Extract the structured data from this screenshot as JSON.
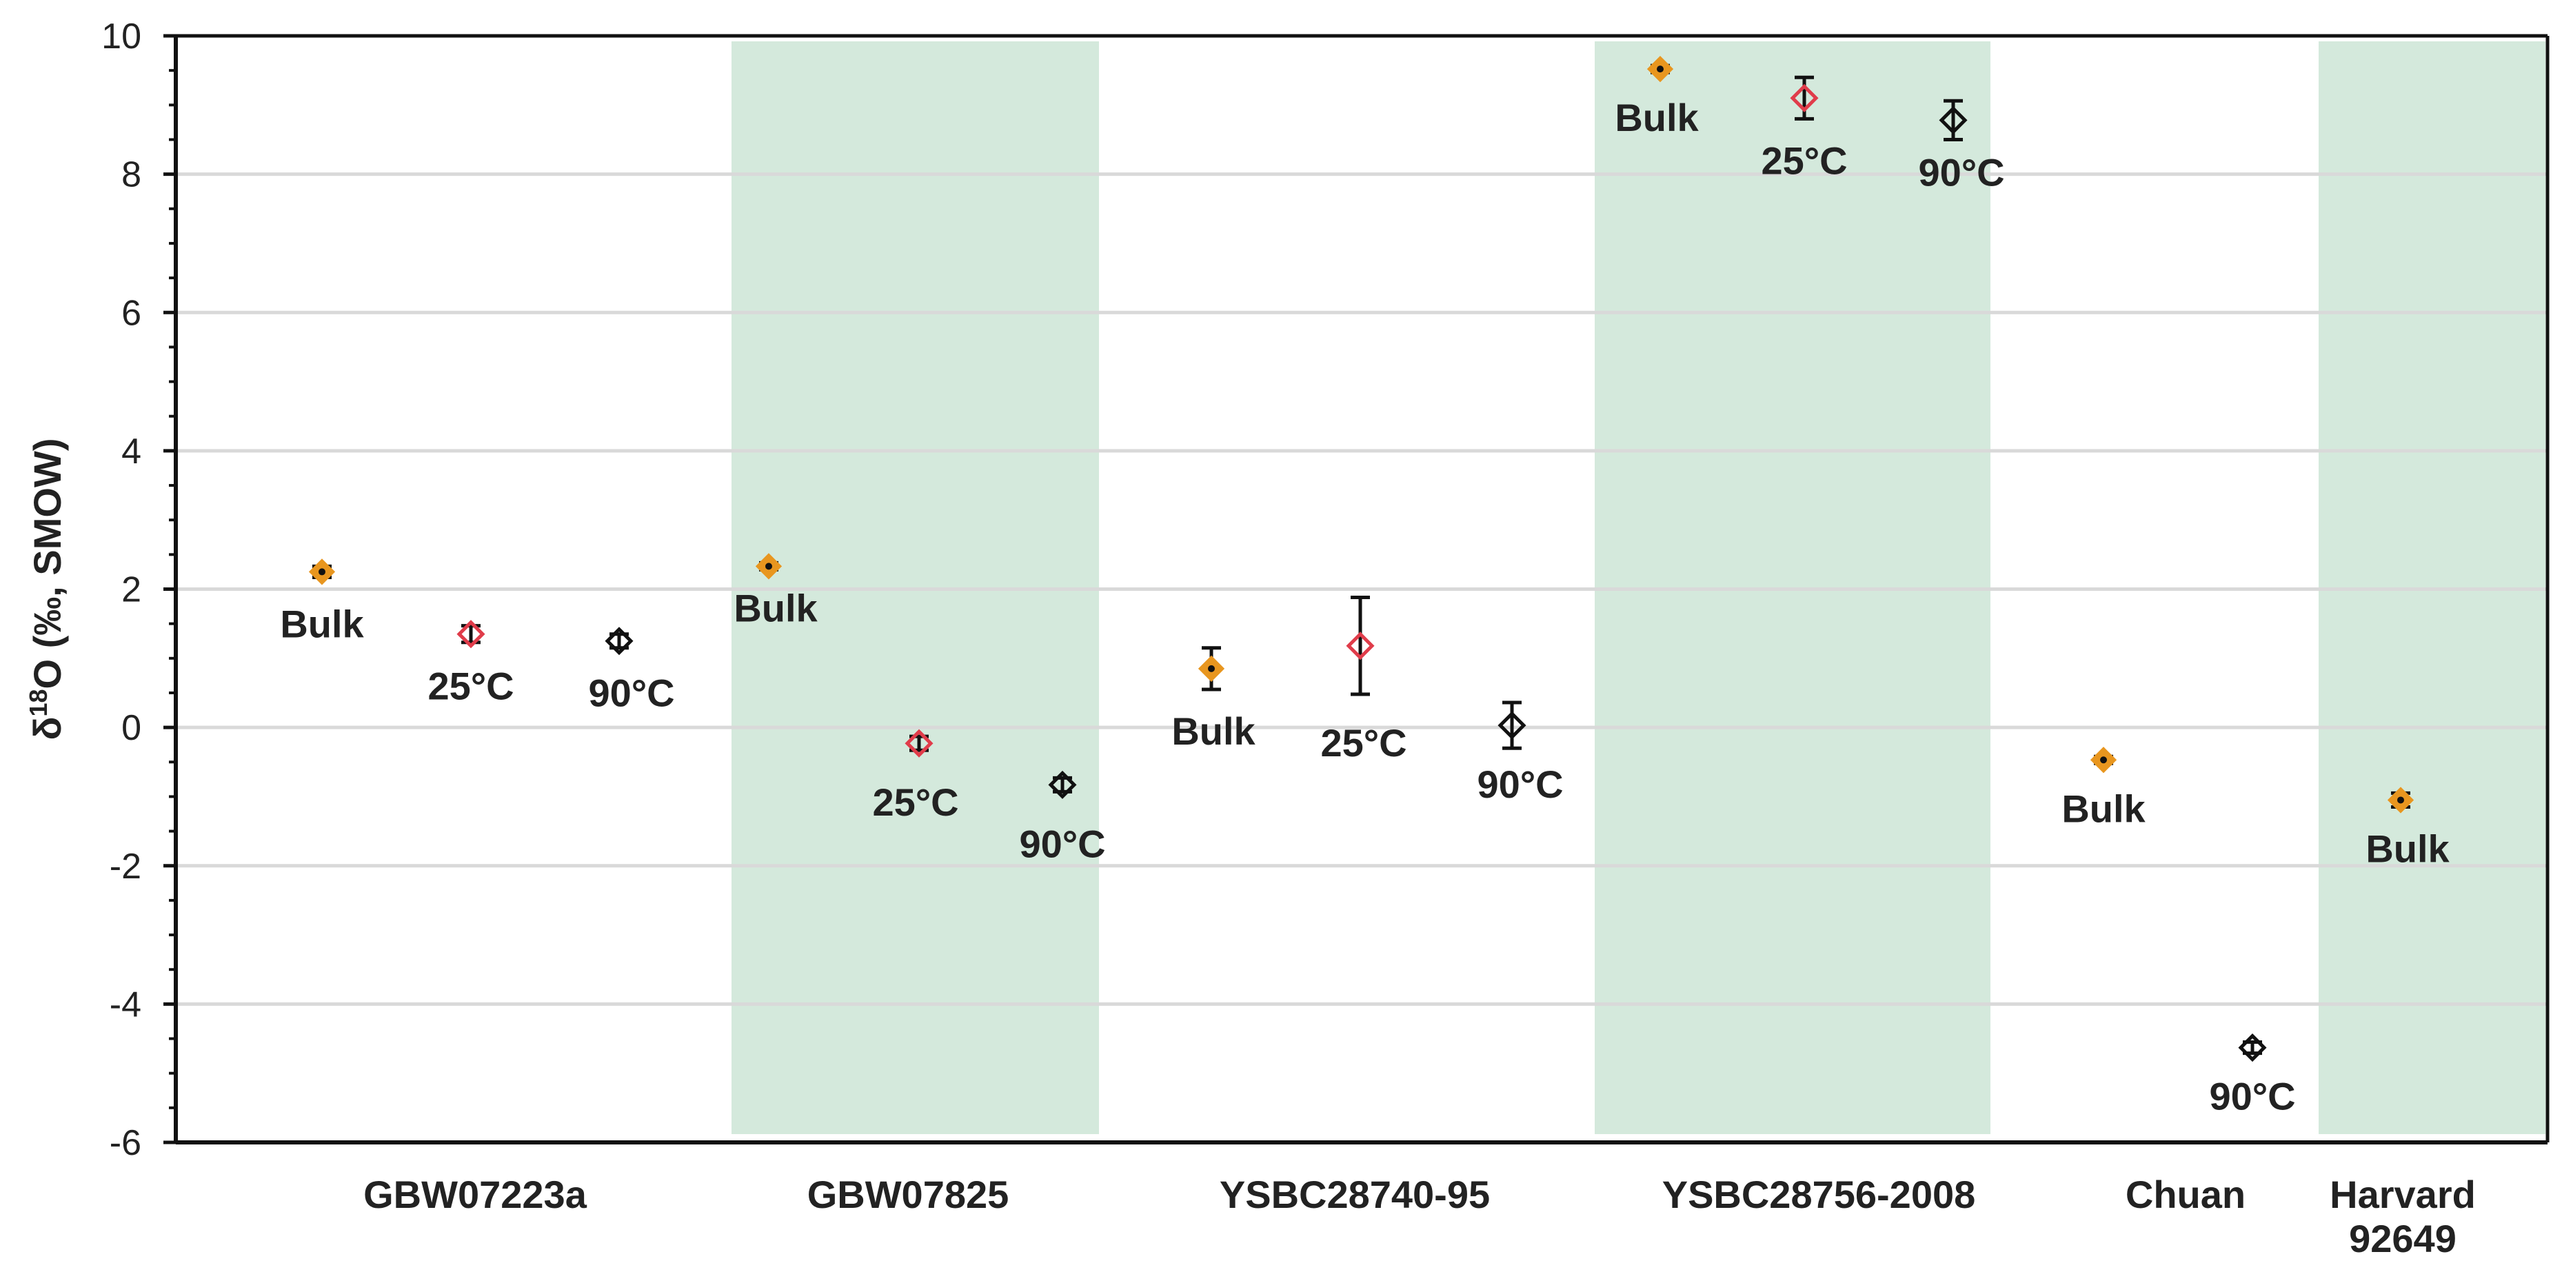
{
  "chart_data": {
    "type": "scatter",
    "ylabel": {
      "prefix": "δ",
      "sup": "18",
      "suffix": "O (‰, SMOW)"
    },
    "ylim": [
      -6,
      10
    ],
    "yticks": [
      -6,
      -4,
      -2,
      0,
      2,
      4,
      6,
      8,
      10
    ],
    "grid": true,
    "colors": {
      "band": "#d4e9dc",
      "bulk_fill": "#e8961f",
      "c25_stroke": "#e03c4a",
      "c90_stroke": "#111111",
      "axis": "#111111",
      "grid": "#d9d9d9"
    },
    "groups": [
      {
        "label": "GBW07223a",
        "shaded": false,
        "points": [
          {
            "label": "Bulk",
            "kind": "bulk",
            "y": 2.25,
            "err": 0.08
          },
          {
            "label": "25°C",
            "kind": "c25",
            "y": 1.35,
            "err": 0.12
          },
          {
            "label": "90°C",
            "kind": "c90",
            "y": 1.25,
            "err": 0.1
          }
        ]
      },
      {
        "label": "GBW07825",
        "shaded": true,
        "points": [
          {
            "label": "Bulk",
            "kind": "bulk",
            "y": 2.33,
            "err": 0.05
          },
          {
            "label": "25°C",
            "kind": "c25",
            "y": -0.23,
            "err": 0.1
          },
          {
            "label": "90°C",
            "kind": "c90",
            "y": -0.83,
            "err": 0.1
          }
        ]
      },
      {
        "label": "YSBC28740-95",
        "shaded": false,
        "points": [
          {
            "label": "Bulk",
            "kind": "bulk",
            "y": 0.85,
            "err": 0.3
          },
          {
            "label": "25°C",
            "kind": "c25",
            "y": 1.18,
            "err": 0.7
          },
          {
            "label": "90°C",
            "kind": "c90",
            "y": 0.03,
            "err": 0.33
          }
        ]
      },
      {
        "label": "YSBC28756-2008",
        "shaded": true,
        "points": [
          {
            "label": "Bulk",
            "kind": "bulk",
            "y": 9.52,
            "err": 0.05
          },
          {
            "label": "25°C",
            "kind": "c25",
            "y": 9.1,
            "err": 0.3
          },
          {
            "label": "90°C",
            "kind": "c90",
            "y": 8.78,
            "err": 0.28
          }
        ]
      },
      {
        "label": "Chuan",
        "shaded": false,
        "points": [
          {
            "label": "Bulk",
            "kind": "bulk",
            "y": -0.47,
            "err": 0.05
          },
          {
            "label": "90°C",
            "kind": "c90",
            "y": -4.63,
            "err": 0.08
          }
        ]
      },
      {
        "label": "Harvard\n92649",
        "shaded": true,
        "points": [
          {
            "label": "Bulk",
            "kind": "bulk",
            "y": -1.05,
            "err": 0.1
          }
        ]
      }
    ]
  }
}
